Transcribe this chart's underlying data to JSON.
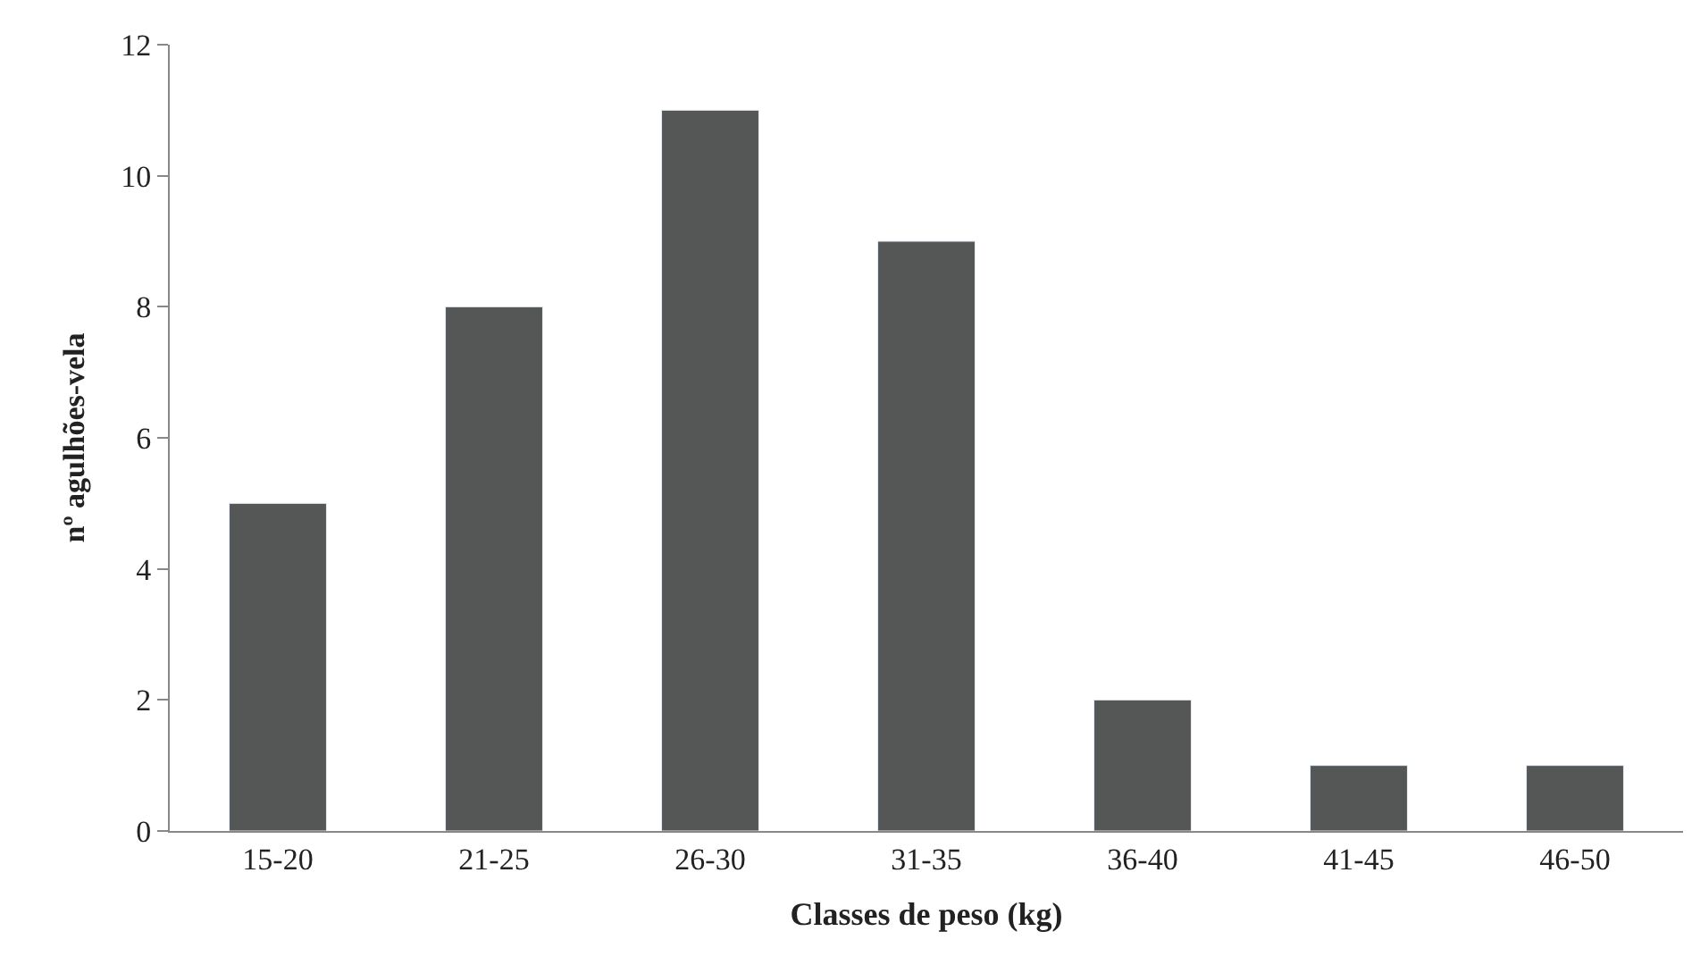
{
  "chart_data": {
    "type": "bar",
    "xlabel": "Classes de peso (kg)",
    "ylabel": "nº agulhões-vela",
    "categories": [
      "15-20",
      "21-25",
      "26-30",
      "31-35",
      "36-40",
      "41-45",
      "46-50"
    ],
    "values": [
      5,
      8,
      11,
      9,
      2,
      1,
      1
    ],
    "color": "#555757",
    "ylim": [
      0,
      12
    ],
    "yticks": [
      0,
      2,
      4,
      6,
      8,
      10,
      12
    ]
  }
}
